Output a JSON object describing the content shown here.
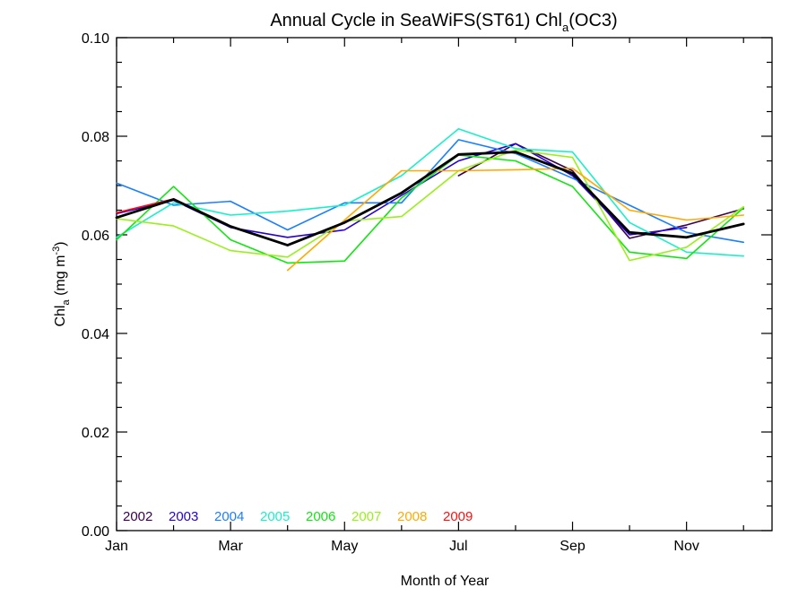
{
  "chart_data": {
    "type": "line",
    "title": {
      "prefix": "Annual Cycle in SeaWiFS(ST61) Chl",
      "subscript": "a",
      "suffix": "(OC3)"
    },
    "xlabel": "Month of Year",
    "ylabel": {
      "prefix": "Chl",
      "subscript": "a",
      "middle": " (mg m",
      "superscript": "-3",
      "suffix": ")"
    },
    "xlim": [
      1,
      12.5
    ],
    "ylim": [
      0.0,
      0.1
    ],
    "x_ticks": [
      {
        "value": 1,
        "label": "Jan"
      },
      {
        "value": 3,
        "label": "Mar"
      },
      {
        "value": 5,
        "label": "May"
      },
      {
        "value": 7,
        "label": "Jul"
      },
      {
        "value": 9,
        "label": "Sep"
      },
      {
        "value": 11,
        "label": "Nov"
      }
    ],
    "y_ticks": [
      {
        "value": 0.0,
        "label": "0.00"
      },
      {
        "value": 0.02,
        "label": "0.02"
      },
      {
        "value": 0.04,
        "label": "0.04"
      },
      {
        "value": 0.06,
        "label": "0.06"
      },
      {
        "value": 0.08,
        "label": "0.08"
      },
      {
        "value": 0.1,
        "label": "0.10"
      }
    ],
    "legend_position": "bottom-left",
    "series": [
      {
        "name": "2002",
        "color": "#3a0050",
        "x": [
          7,
          8,
          9,
          10,
          11,
          12
        ],
        "y": [
          0.072,
          0.0785,
          0.073,
          0.0593,
          0.062,
          0.0653
        ]
      },
      {
        "name": "2003",
        "color": "#2a00d0",
        "x": [
          1,
          2,
          3,
          4,
          5,
          6,
          7,
          8,
          9,
          10,
          11
        ],
        "y": [
          0.0643,
          0.067,
          0.0615,
          0.0595,
          0.061,
          0.068,
          0.075,
          0.0785,
          0.072,
          0.06,
          0.0615
        ]
      },
      {
        "name": "2004",
        "color": "#1a7fff",
        "x": [
          1,
          2,
          3,
          4,
          5,
          6,
          7,
          8,
          9,
          10,
          11,
          12
        ],
        "y": [
          0.0705,
          0.066,
          0.0668,
          0.061,
          0.0665,
          0.0665,
          0.0793,
          0.0765,
          0.0715,
          0.066,
          0.0605,
          0.0585
        ]
      },
      {
        "name": "2005",
        "color": "#19f0c8",
        "x": [
          1,
          2,
          3,
          4,
          5,
          6,
          7,
          8,
          9,
          10,
          11,
          12
        ],
        "y": [
          0.0595,
          0.0665,
          0.064,
          0.0648,
          0.066,
          0.072,
          0.0815,
          0.0775,
          0.0768,
          0.0625,
          0.0565,
          0.0557
        ]
      },
      {
        "name": "2006",
        "color": "#12e512",
        "x": [
          1,
          2,
          3,
          4,
          5,
          6,
          7,
          8,
          9,
          10,
          11,
          12
        ],
        "y": [
          0.059,
          0.0698,
          0.059,
          0.0543,
          0.0547,
          0.0675,
          0.0762,
          0.075,
          0.0698,
          0.0565,
          0.0552,
          0.0655
        ]
      },
      {
        "name": "2007",
        "color": "#9af01a",
        "x": [
          1,
          2,
          3,
          4,
          5,
          6,
          7,
          8,
          9,
          10,
          11,
          12
        ],
        "y": [
          0.0633,
          0.0618,
          0.0568,
          0.0555,
          0.0628,
          0.0637,
          0.073,
          0.0772,
          0.0757,
          0.0548,
          0.0575,
          0.0657
        ]
      },
      {
        "name": "2008",
        "color": "#ffaa00",
        "x": [
          4,
          5,
          6,
          7,
          8,
          9,
          10,
          11,
          12
        ],
        "y": [
          0.0528,
          0.063,
          0.073,
          0.073,
          0.0732,
          0.0735,
          0.065,
          0.063,
          0.064
        ]
      },
      {
        "name": "2009",
        "color": "#ff1010",
        "x": [
          1,
          2
        ],
        "y": [
          0.0645,
          0.0673
        ]
      },
      {
        "color": "#000000",
        "x": [
          1,
          2,
          3,
          4,
          5,
          6,
          7,
          8,
          9,
          10,
          11,
          12
        ],
        "y": [
          0.0635,
          0.0672,
          0.0617,
          0.0579,
          0.0625,
          0.0685,
          0.0763,
          0.0768,
          0.0725,
          0.0605,
          0.0595,
          0.0622
        ]
      }
    ]
  }
}
